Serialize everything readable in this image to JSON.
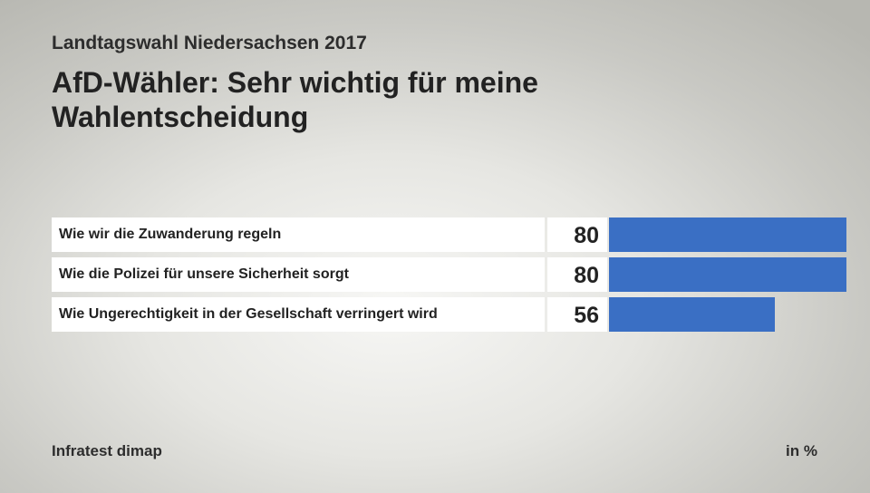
{
  "header": {
    "subtitle": "Landtagswahl Niedersachsen 2017",
    "title": "AfD-Wähler: Sehr wichtig für meine Wahlentscheidung"
  },
  "footer": {
    "source": "Infratest dimap",
    "unit": "in %"
  },
  "colors": {
    "bar": "#3a6fc4"
  },
  "chart_data": {
    "type": "bar",
    "orientation": "horizontal",
    "categories": [
      "Wie wir die Zuwanderung regeln",
      "Wie die Polizei für unsere Sicherheit sorgt",
      "Wie Ungerechtigkeit in der Gesellschaft verringert wird"
    ],
    "values": [
      80,
      80,
      56
    ],
    "title": "AfD-Wähler: Sehr wichtig für meine Wahlentscheidung",
    "subtitle": "Landtagswahl Niedersachsen 2017",
    "unit": "in %",
    "xlim": [
      0,
      80
    ],
    "grid": false
  }
}
